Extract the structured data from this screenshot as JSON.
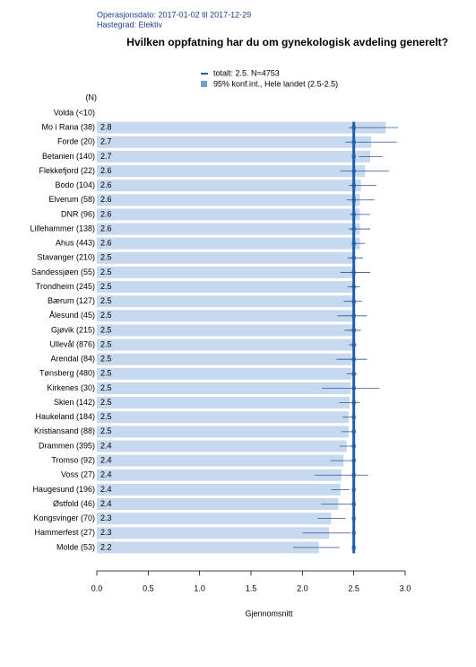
{
  "chart_data": {
    "type": "hbar_ci",
    "header": [
      "Operasjonsdato: 2017-01-02 til 2017-12-29",
      "Hastegrad: Elektiv"
    ],
    "title": "Hvilken oppfatning har du om gynekologisk avdeling generelt?",
    "legend": [
      "totalt: 2.5. N=4753",
      "95% konf.int., Hele landet (2.5-2.5)"
    ],
    "n_header": "(N)",
    "xlabel": "Gjennomsnitt",
    "reference": 2.5,
    "categories": [
      "Volda (<10)",
      "Mo i Rana (38)",
      "Forde (20)",
      "Betanien (140)",
      "Flekkefjord (22)",
      "Bodo (104)",
      "Elverum (58)",
      "DNR (96)",
      "Lillehammer (138)",
      "Ahus (443)",
      "Stavanger (210)",
      "Sandessjøen (55)",
      "Trondheim (245)",
      "Bærum (127)",
      "Ålesund (45)",
      "Gjøvik (215)",
      "Ullevål (876)",
      "Arendal (84)",
      "Tønsberg (480)",
      "Kirkenes (30)",
      "Skien (142)",
      "Haukeland (184)",
      "Kristiansand (88)",
      "Drammen (395)",
      "Tromso (92)",
      "Voss (27)",
      "Haugesund (196)",
      "Østfold (46)",
      "Kongsvinger (70)",
      "Hammerfest (27)",
      "Molde (53)"
    ],
    "values": [
      null,
      2.81,
      2.67,
      2.66,
      2.61,
      2.57,
      2.56,
      2.56,
      2.56,
      2.56,
      2.51,
      2.51,
      2.5,
      2.49,
      2.49,
      2.49,
      2.49,
      2.48,
      2.48,
      2.47,
      2.46,
      2.45,
      2.45,
      2.43,
      2.4,
      2.38,
      2.37,
      2.35,
      2.28,
      2.26,
      2.16
    ],
    "value_labels": [
      null,
      "2.8",
      "2.7",
      "2.7",
      "2.6",
      "2.6",
      "2.6",
      "2.6",
      "2.6",
      "2.6",
      "2.5",
      "2.5",
      "2.5",
      "2.5",
      "2.5",
      "2.5",
      "2.5",
      "2.5",
      "2.5",
      "2.5",
      "2.5",
      "2.5",
      "2.5",
      "2.4",
      "2.4",
      "2.4",
      "2.4",
      "2.4",
      "2.3",
      "2.3",
      "2.2"
    ],
    "ci_lower": [
      null,
      2.45,
      2.42,
      2.55,
      2.37,
      2.45,
      2.43,
      2.46,
      2.45,
      2.5,
      2.44,
      2.37,
      2.44,
      2.4,
      2.34,
      2.41,
      2.45,
      2.33,
      2.43,
      2.19,
      2.36,
      2.39,
      2.38,
      2.36,
      2.27,
      2.12,
      2.28,
      2.18,
      2.15,
      2.0,
      1.91
    ],
    "ci_upper": [
      null,
      2.93,
      2.92,
      2.78,
      2.84,
      2.72,
      2.7,
      2.66,
      2.66,
      2.61,
      2.59,
      2.66,
      2.56,
      2.58,
      2.63,
      2.57,
      2.53,
      2.63,
      2.53,
      2.75,
      2.56,
      2.51,
      2.52,
      2.5,
      2.52,
      2.64,
      2.46,
      2.52,
      2.42,
      2.47,
      2.36
    ],
    "bar_color": "#c6d9ef",
    "line_color": "#1f5fae",
    "ci_color": "#2b5a96",
    "xlim": [
      0,
      3
    ],
    "xticks": [
      {
        "value": 0,
        "label": "0.0"
      },
      {
        "value": 0.5,
        "label": "0.5"
      },
      {
        "value": 1,
        "label": "1.0"
      },
      {
        "value": 1.5,
        "label": "1.5"
      },
      {
        "value": 2,
        "label": "2.0"
      },
      {
        "value": 2.5,
        "label": "2.5"
      },
      {
        "value": 3,
        "label": "3.0"
      }
    ]
  }
}
